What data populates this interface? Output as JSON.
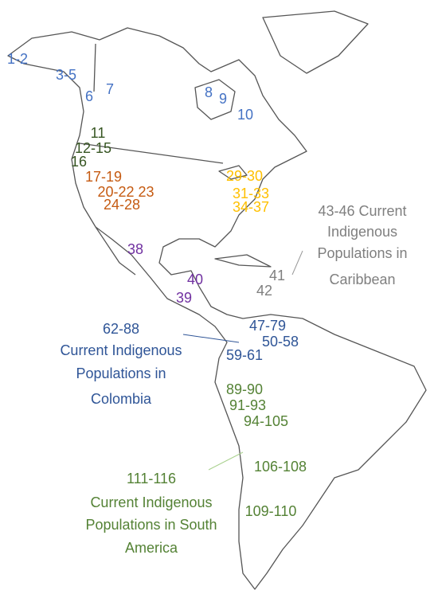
{
  "labels": [
    {
      "text": "1-2",
      "color": "#4472c4"
    },
    {
      "text": "3-5",
      "color": "#4472c4"
    },
    {
      "text": "6",
      "color": "#4472c4"
    },
    {
      "text": "7",
      "color": "#4472c4"
    },
    {
      "text": "8",
      "color": "#4472c4"
    },
    {
      "text": "9",
      "color": "#4472c4"
    },
    {
      "text": "10",
      "color": "#4472c4"
    },
    {
      "text": "11",
      "color": "#375623"
    },
    {
      "text": "12-15",
      "color": "#375623"
    },
    {
      "text": "16",
      "color": "#375623"
    },
    {
      "text": "17-19",
      "color": "#c55a11"
    },
    {
      "text": "20-22 23",
      "color": "#c55a11"
    },
    {
      "text": "24-28",
      "color": "#c55a11"
    },
    {
      "text": "29-30",
      "color": "#ffc000"
    },
    {
      "text": "31-33",
      "color": "#ffc000"
    },
    {
      "text": "34-37",
      "color": "#ffc000"
    },
    {
      "text": "43-46 Current",
      "color": "#7f7f7f"
    },
    {
      "text": "Indigenous",
      "color": "#7f7f7f"
    },
    {
      "text": "Populations in",
      "color": "#7f7f7f"
    },
    {
      "text": "Caribbean",
      "color": "#7f7f7f"
    },
    {
      "text": "41",
      "color": "#7f7f7f"
    },
    {
      "text": "42",
      "color": "#7f7f7f"
    },
    {
      "text": "38",
      "color": "#7030a0"
    },
    {
      "text": "40",
      "color": "#7030a0"
    },
    {
      "text": "39",
      "color": "#7030a0"
    },
    {
      "text": "62-88",
      "color": "#2f5597"
    },
    {
      "text": "Current Indigenous",
      "color": "#2f5597"
    },
    {
      "text": "Populations in",
      "color": "#2f5597"
    },
    {
      "text": "Colombia",
      "color": "#2f5597"
    },
    {
      "text": "47-79",
      "color": "#2f5597"
    },
    {
      "text": "50-58",
      "color": "#2f5597"
    },
    {
      "text": "59-61",
      "color": "#2f5597"
    },
    {
      "text": "89-90",
      "color": "#548235"
    },
    {
      "text": "91-93",
      "color": "#548235"
    },
    {
      "text": "94-105",
      "color": "#548235"
    },
    {
      "text": "106-108",
      "color": "#548235"
    },
    {
      "text": "109-110",
      "color": "#548235"
    },
    {
      "text": "111-116",
      "color": "#548235"
    },
    {
      "text": "Current Indigenous",
      "color": "#548235"
    },
    {
      "text": "Populations in South",
      "color": "#548235"
    },
    {
      "text": "America",
      "color": "#548235"
    }
  ]
}
